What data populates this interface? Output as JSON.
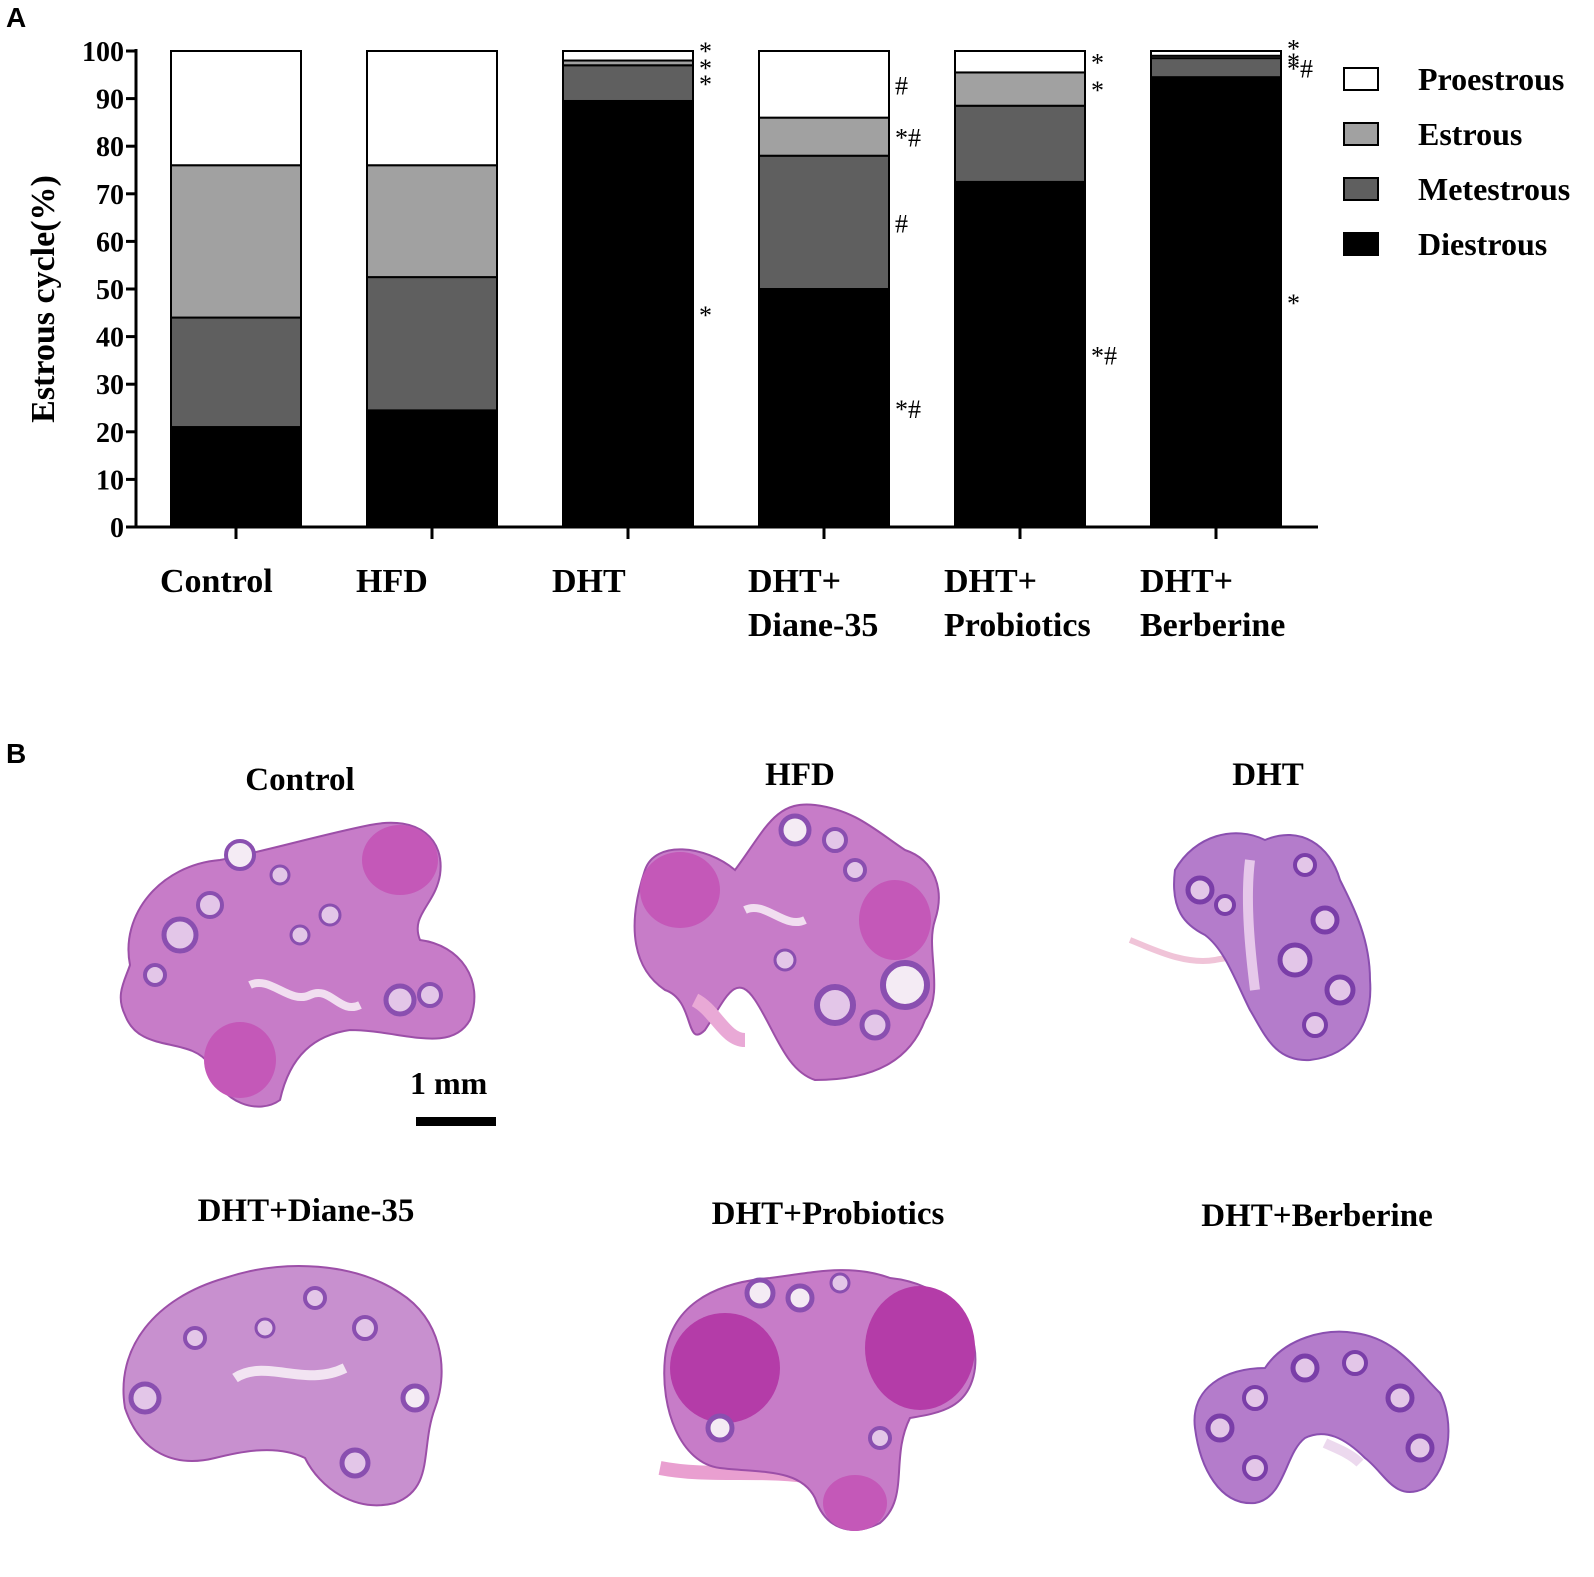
{
  "panel_labels": {
    "a": "A",
    "b": "B"
  },
  "chart_data": {
    "type": "bar",
    "stacked": true,
    "ylabel": "Estrous cycle(%)",
    "xlabel": "",
    "ylim": [
      0,
      100
    ],
    "yticks": [
      0,
      10,
      20,
      30,
      40,
      50,
      60,
      70,
      80,
      90,
      100
    ],
    "categories": [
      [
        "Control"
      ],
      [
        "HFD"
      ],
      [
        "DHT"
      ],
      [
        "DHT+",
        "Diane-35"
      ],
      [
        "DHT+",
        "Probiotics"
      ],
      [
        "DHT+",
        "Berberine"
      ]
    ],
    "series": [
      {
        "name": "Diestrous",
        "color": "#000000",
        "values": [
          21,
          24.5,
          89.5,
          50,
          72.5,
          94.5
        ]
      },
      {
        "name": "Metestrous",
        "color": "#5f5f5f",
        "values": [
          23,
          28,
          7.5,
          28,
          16,
          4
        ]
      },
      {
        "name": "Estrous",
        "color": "#a1a1a1",
        "values": [
          32,
          23.5,
          1,
          8,
          7,
          0.5
        ]
      },
      {
        "name": "Proestrous",
        "color": "#ffffff",
        "values": [
          24,
          24,
          2,
          14,
          4.5,
          1
        ]
      }
    ],
    "legend_order": [
      "Proestrous",
      "Estrous",
      "Metestrous",
      "Diestrous"
    ],
    "legend_position": "right",
    "annotations": [
      {
        "category": 2,
        "series": "Proestrous",
        "text": "*"
      },
      {
        "category": 2,
        "series": "Estrous",
        "text": "*"
      },
      {
        "category": 2,
        "series": "Metestrous",
        "text": "*"
      },
      {
        "category": 2,
        "series": "Diestrous",
        "text": "*"
      },
      {
        "category": 3,
        "series": "Proestrous",
        "text": "#"
      },
      {
        "category": 3,
        "series": "Estrous",
        "text": "*#"
      },
      {
        "category": 3,
        "series": "Metestrous",
        "text": "#"
      },
      {
        "category": 3,
        "series": "Diestrous",
        "text": "*#"
      },
      {
        "category": 4,
        "series": "Proestrous",
        "text": "*"
      },
      {
        "category": 4,
        "series": "Estrous",
        "text": "*"
      },
      {
        "category": 4,
        "series": "Diestrous",
        "text": "*#"
      },
      {
        "category": 5,
        "series": "Proestrous",
        "text": "*"
      },
      {
        "category": 5,
        "series": "Estrous",
        "text": "*"
      },
      {
        "category": 5,
        "series": "Metestrous",
        "text": "*#"
      },
      {
        "category": 5,
        "series": "Diestrous",
        "text": "*"
      }
    ]
  },
  "histology": {
    "images": [
      {
        "title": "Control"
      },
      {
        "title": "HFD"
      },
      {
        "title": "DHT"
      },
      {
        "title": "DHT+Diane-35"
      },
      {
        "title": "DHT+Probiotics"
      },
      {
        "title": "DHT+Berberine"
      }
    ],
    "scale_bar": "1 mm",
    "colors": {
      "stroma": "#c77cc8",
      "follicle": "#8a4fb0",
      "corpus": "#c458b8",
      "pale": "#e9c8e8"
    }
  }
}
